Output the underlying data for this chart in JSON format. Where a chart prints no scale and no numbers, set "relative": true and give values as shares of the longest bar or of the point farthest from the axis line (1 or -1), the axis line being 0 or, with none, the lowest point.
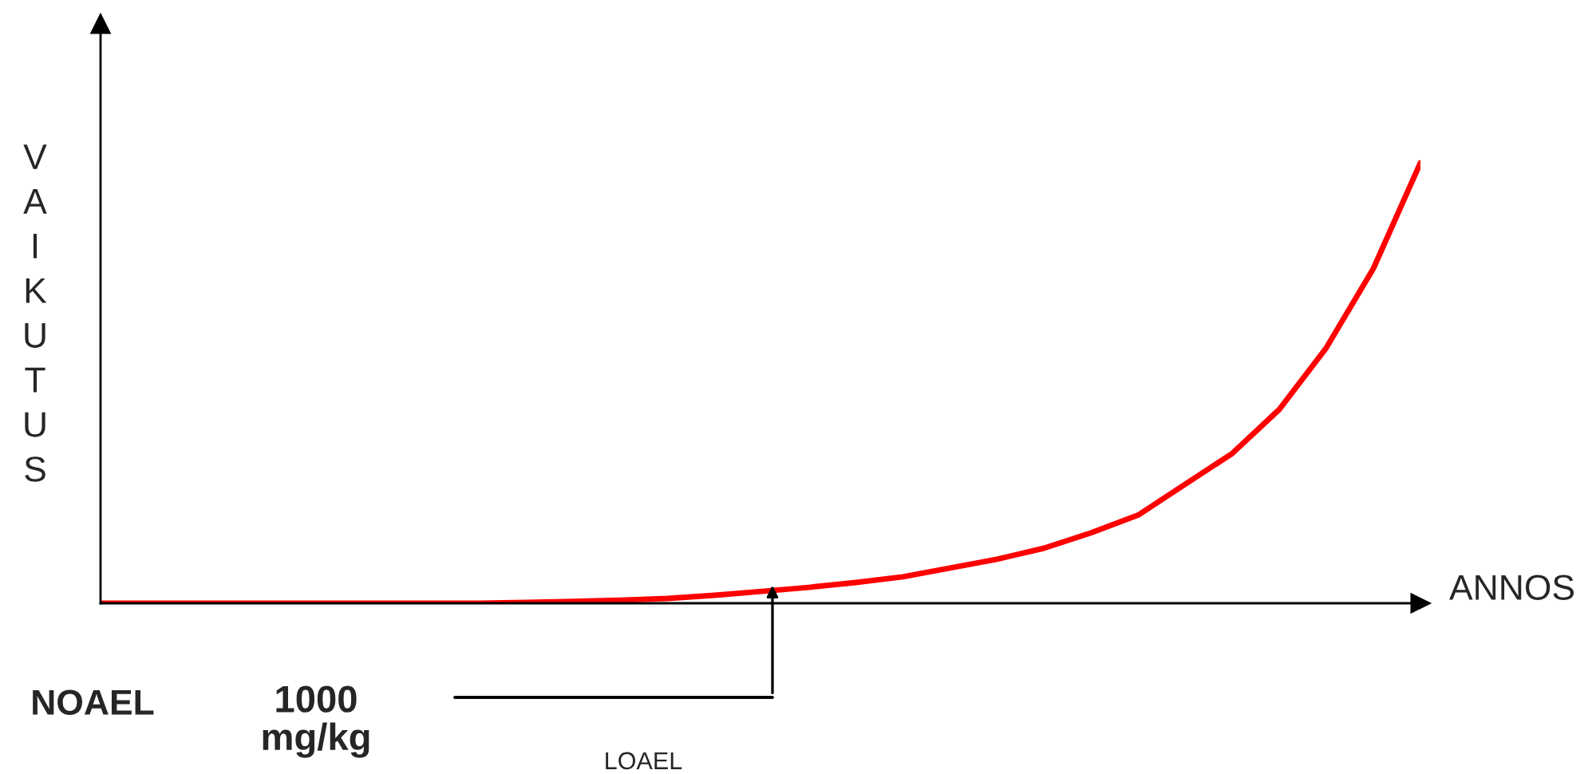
{
  "chart_data": {
    "type": "line",
    "relative": true,
    "ylabel": "VAIKUTUS",
    "categories": [
      null,
      null,
      null,
      null,
      null,
      null,
      null,
      null,
      null,
      null,
      null,
      null,
      null,
      null,
      null,
      null,
      null,
      null,
      null,
      null,
      null,
      null,
      null,
      null,
      null,
      null,
      null,
      null,
      null
    ],
    "series": [
      {
        "color": "#ff0000",
        "values": [
          0,
          0,
          0,
          0,
          0,
          0,
          0,
          0,
          0,
          0.002,
          0.004,
          0.007,
          0.011,
          0.018,
          0.027,
          0.036,
          0.047,
          0.06,
          0.08,
          0.1,
          0.125,
          0.16,
          0.2,
          0.27,
          0.34,
          0.44,
          0.58,
          0.76,
          1.0
        ]
      }
    ],
    "annotations": [
      "NOAEL",
      "1000\nmg/kg",
      "LOAEL",
      "ANNOS"
    ]
  }
}
